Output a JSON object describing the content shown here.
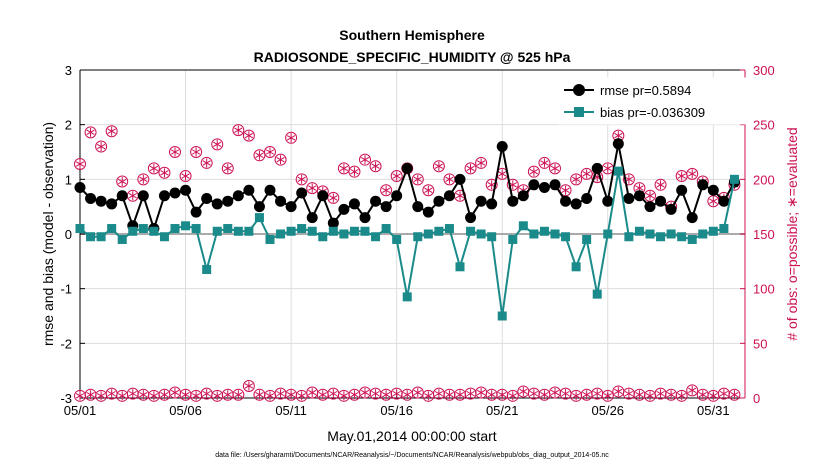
{
  "chart_data": {
    "type": "line",
    "title": "Southern Hemisphere",
    "subtitle": "RADIOSONDE_SPECIFIC_HUMIDITY @ 525 hPa",
    "xlabel": "May.01,2014 00:00:00 start",
    "ylabel": "rmse and bias (model - observation)",
    "ylabel_right": "# of obs: o=possible; ∗=evaluated",
    "footnote": "data file: /Users/gharamti/Documents/NCAR/Reanalysis/~/Documents/NCAR/Reanalysis/webpub/obs_diag_output_2014-05.nc",
    "xlim": [
      0,
      31.5
    ],
    "ylim": [
      -3,
      3
    ],
    "ylim_right": [
      0,
      300
    ],
    "x_ticks": [
      0,
      5,
      10,
      15,
      20,
      25,
      30
    ],
    "x_tick_labels": [
      "05/01",
      "05/06",
      "05/11",
      "05/16",
      "05/21",
      "05/26",
      "05/31"
    ],
    "y_ticks": [
      -3,
      -2,
      -1,
      0,
      1,
      2,
      3
    ],
    "y_tick_labels": [
      "-3",
      "-2",
      "-1",
      "0",
      "1",
      "2",
      "3"
    ],
    "y_right_ticks": [
      0,
      50,
      100,
      150,
      200,
      250,
      300
    ],
    "y_right_tick_labels": [
      "0",
      "50",
      "100",
      "150",
      "200",
      "250",
      "300"
    ],
    "colors": {
      "rmse": "#000000",
      "bias": "#1a8a8a",
      "obs": "#cc1155",
      "zero": "#aaaaaa",
      "axis": "#000000",
      "grid": "#dddddd"
    },
    "legend": {
      "placement": "top-right",
      "rmse": "rmse pr=0.5894",
      "bias": "bias pr=-0.036309"
    },
    "series": [
      {
        "name": "rmse",
        "x": [
          0,
          0.5,
          1,
          1.5,
          2,
          2.5,
          3,
          3.5,
          4,
          4.5,
          5,
          5.5,
          6,
          6.5,
          7,
          7.5,
          8,
          8.5,
          9,
          9.5,
          10,
          10.5,
          11,
          11.5,
          12,
          12.5,
          13,
          13.5,
          14,
          14.5,
          15,
          15.5,
          16,
          16.5,
          17,
          17.5,
          18,
          18.5,
          19,
          19.5,
          20,
          20.5,
          21,
          21.5,
          22,
          22.5,
          23,
          23.5,
          24,
          24.5,
          25,
          25.5,
          26,
          26.5,
          27,
          27.5,
          28,
          28.5,
          29,
          29.5,
          30,
          30.5,
          31
        ],
        "values": [
          0.85,
          0.65,
          0.6,
          0.55,
          0.7,
          0.15,
          0.7,
          0.1,
          0.7,
          0.75,
          0.8,
          0.4,
          0.65,
          0.55,
          0.6,
          0.7,
          0.8,
          0.5,
          0.8,
          0.6,
          0.5,
          0.75,
          0.3,
          0.7,
          0.2,
          0.45,
          0.55,
          0.3,
          0.6,
          0.5,
          0.7,
          1.2,
          0.5,
          0.4,
          0.6,
          0.7,
          1.0,
          0.3,
          0.6,
          0.55,
          1.6,
          0.6,
          0.7,
          0.9,
          0.85,
          0.9,
          0.6,
          0.55,
          0.65,
          1.2,
          0.6,
          1.65,
          0.65,
          0.7,
          0.5,
          0.6,
          0.45,
          0.8,
          0.3,
          0.9,
          0.8,
          0.6,
          0.95
        ]
      },
      {
        "name": "bias",
        "x": [
          0,
          0.5,
          1,
          1.5,
          2,
          2.5,
          3,
          3.5,
          4,
          4.5,
          5,
          5.5,
          6,
          6.5,
          7,
          7.5,
          8,
          8.5,
          9,
          9.5,
          10,
          10.5,
          11,
          11.5,
          12,
          12.5,
          13,
          13.5,
          14,
          14.5,
          15,
          15.5,
          16,
          16.5,
          17,
          17.5,
          18,
          18.5,
          19,
          19.5,
          20,
          20.5,
          21,
          21.5,
          22,
          22.5,
          23,
          23.5,
          24,
          24.5,
          25,
          25.5,
          26,
          26.5,
          27,
          27.5,
          28,
          28.5,
          29,
          29.5,
          30,
          30.5,
          31
        ],
        "values": [
          0.1,
          -0.05,
          -0.05,
          0.1,
          -0.1,
          0.05,
          0.1,
          0.05,
          -0.05,
          0.1,
          0.15,
          0.1,
          -0.65,
          0.05,
          0.1,
          0.05,
          0.05,
          0.3,
          -0.1,
          0.0,
          0.05,
          0.1,
          0.05,
          -0.05,
          0.05,
          0.0,
          0.05,
          0.05,
          -0.05,
          0.1,
          -0.1,
          -1.15,
          -0.05,
          0.0,
          0.05,
          0.1,
          -0.6,
          0.05,
          0.0,
          -0.05,
          -1.5,
          -0.1,
          0.15,
          0.0,
          0.05,
          0.0,
          -0.05,
          -0.6,
          -0.1,
          -1.1,
          0.0,
          1.15,
          -0.05,
          0.05,
          0.0,
          -0.05,
          0.0,
          -0.05,
          -0.1,
          0.0,
          0.05,
          0.1,
          1.0
        ]
      }
    ],
    "obs_possible": {
      "x": [
        0,
        0.5,
        1,
        1.5,
        2,
        2.5,
        3,
        3.5,
        4,
        4.5,
        5,
        5.5,
        6,
        6.5,
        7,
        7.5,
        8,
        8.5,
        9,
        9.5,
        10,
        10.5,
        11,
        11.5,
        12,
        12.5,
        13,
        13.5,
        14,
        14.5,
        15,
        15.5,
        16,
        16.5,
        17,
        17.5,
        18,
        18.5,
        19,
        19.5,
        20,
        20.5,
        21,
        21.5,
        22,
        22.5,
        23,
        23.5,
        24,
        24.5,
        25,
        25.5,
        26,
        26.5,
        27,
        27.5,
        28,
        28.5,
        29,
        29.5,
        30,
        30.5,
        31
      ],
      "values": [
        214,
        243,
        230,
        244,
        198,
        185,
        200,
        210,
        206,
        225,
        203,
        225,
        215,
        232,
        210,
        245,
        240,
        222,
        225,
        218,
        238,
        200,
        192,
        189,
        183,
        210,
        207,
        218,
        212,
        190,
        203,
        210,
        200,
        190,
        212,
        200,
        185,
        210,
        215,
        195,
        205,
        195,
        190,
        207,
        215,
        210,
        190,
        200,
        205,
        202,
        210,
        240,
        200,
        192,
        185,
        195,
        175,
        203,
        205,
        198,
        180,
        183,
        195
      ]
    },
    "obs_possible_bottom": {
      "x": [
        0,
        0.5,
        1,
        1.5,
        2,
        2.5,
        3,
        3.5,
        4,
        4.5,
        5,
        5.5,
        6,
        6.5,
        7,
        7.5,
        8,
        8.5,
        9,
        9.5,
        10,
        10.5,
        11,
        11.5,
        12,
        12.5,
        13,
        13.5,
        14,
        14.5,
        15,
        15.5,
        16,
        16.5,
        17,
        17.5,
        18,
        18.5,
        19,
        19.5,
        20,
        20.5,
        21,
        21.5,
        22,
        22.5,
        23,
        23.5,
        24,
        24.5,
        25,
        25.5,
        26,
        26.5,
        27,
        27.5,
        28,
        28.5,
        29,
        29.5,
        30,
        30.5,
        31
      ],
      "values": [
        2,
        3,
        2,
        4,
        2,
        4,
        3,
        2,
        3,
        5,
        3,
        2,
        4,
        2,
        3,
        3,
        11,
        3,
        2,
        4,
        3,
        2,
        5,
        3,
        4,
        2,
        3,
        5,
        4,
        3,
        4,
        3,
        5,
        2,
        4,
        3,
        3,
        4,
        5,
        3,
        3,
        2,
        6,
        4,
        3,
        5,
        4,
        2,
        3,
        4,
        2,
        6,
        4,
        3,
        2,
        4,
        3,
        2,
        7,
        3,
        2,
        4,
        3
      ]
    }
  }
}
